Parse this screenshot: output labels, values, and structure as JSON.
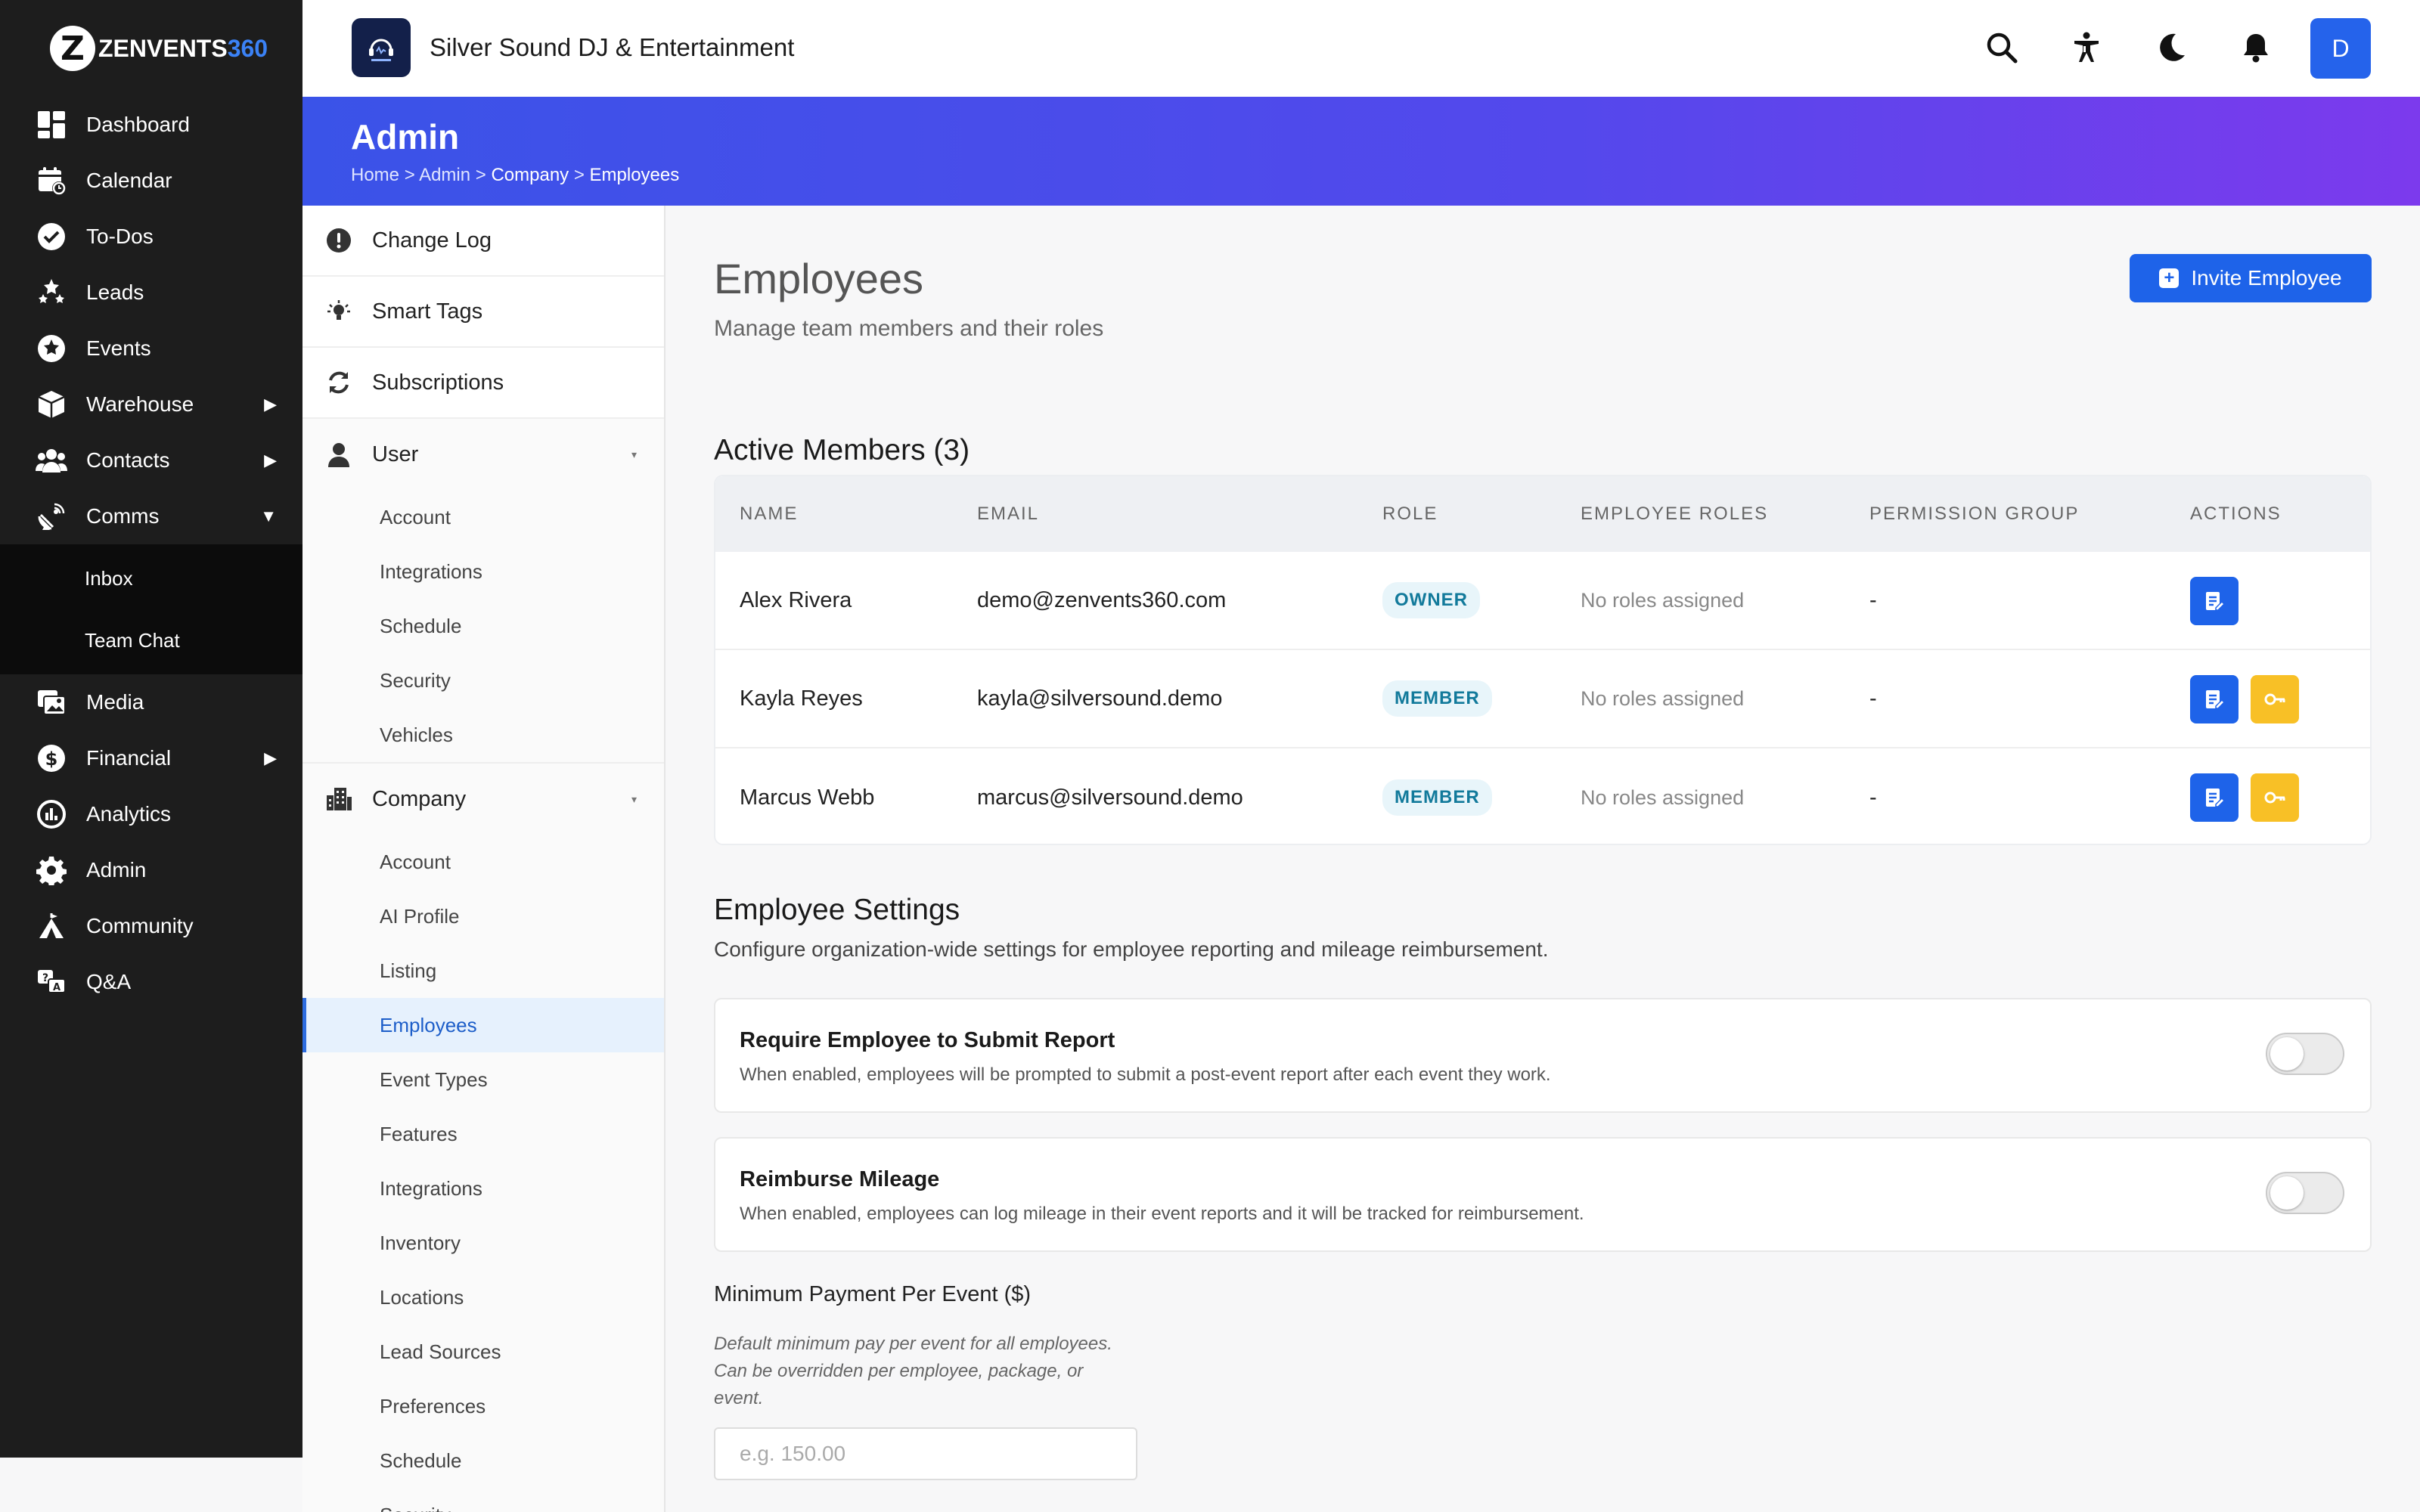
{
  "brand": {
    "logo_letter": "Z",
    "logo_text": "ZENVENTS",
    "logo_suffix": "360"
  },
  "nav": {
    "items": [
      {
        "label": "Dashboard",
        "icon": "dashboard-icon"
      },
      {
        "label": "Calendar",
        "icon": "calendar-icon"
      },
      {
        "label": "To-Dos",
        "icon": "check-circle-icon"
      },
      {
        "label": "Leads",
        "icon": "stars-icon"
      },
      {
        "label": "Events",
        "icon": "star-circle-icon"
      },
      {
        "label": "Warehouse",
        "icon": "box-icon",
        "arrow": "▶"
      },
      {
        "label": "Contacts",
        "icon": "users-icon",
        "arrow": "▶"
      },
      {
        "label": "Comms",
        "icon": "satellite-icon",
        "arrow": "▼"
      }
    ],
    "comms_sub": [
      "Inbox",
      "Team Chat"
    ],
    "items2": [
      {
        "label": "Media",
        "icon": "photos-icon"
      },
      {
        "label": "Financial",
        "icon": "dollar-icon",
        "arrow": "▶"
      },
      {
        "label": "Analytics",
        "icon": "chart-pie-icon"
      },
      {
        "label": "Admin",
        "icon": "gear-icon"
      },
      {
        "label": "Community",
        "icon": "tent-icon"
      },
      {
        "label": "Q&A",
        "icon": "qa-icon"
      }
    ]
  },
  "header": {
    "business_name": "Silver Sound DJ & Entertainment",
    "avatar_initial": "D"
  },
  "banner": {
    "title": "Admin",
    "breadcrumb": [
      "Home",
      "Admin",
      "Company",
      "Employees"
    ],
    "sep": " > "
  },
  "side": {
    "top": [
      "Change Log",
      "Smart Tags",
      "Subscriptions"
    ],
    "user": {
      "label": "User",
      "items": [
        "Account",
        "Integrations",
        "Schedule",
        "Security",
        "Vehicles"
      ]
    },
    "company": {
      "label": "Company",
      "items": [
        "Account",
        "AI Profile",
        "Listing",
        "Employees",
        "Event Types",
        "Features",
        "Integrations",
        "Inventory",
        "Locations",
        "Lead Sources",
        "Preferences",
        "Schedule",
        "Security"
      ]
    },
    "caret": "▾"
  },
  "main": {
    "title": "Employees",
    "subtitle": "Manage team members and their roles",
    "invite_label": "Invite Employee",
    "active_title": "Active Members (3)",
    "columns": [
      "NAME",
      "EMAIL",
      "ROLE",
      "EMPLOYEE ROLES",
      "PERMISSION GROUP",
      "ACTIONS"
    ],
    "rows": [
      {
        "name": "Alex Rivera",
        "email": "demo@zenvents360.com",
        "role": "OWNER",
        "employee_roles": "No roles assigned",
        "permission_group": "-",
        "actions": [
          "edit"
        ]
      },
      {
        "name": "Kayla Reyes",
        "email": "kayla@silversound.demo",
        "role": "MEMBER",
        "employee_roles": "No roles assigned",
        "permission_group": "-",
        "actions": [
          "edit",
          "key"
        ]
      },
      {
        "name": "Marcus Webb",
        "email": "marcus@silversound.demo",
        "role": "MEMBER",
        "employee_roles": "No roles assigned",
        "permission_group": "-",
        "actions": [
          "edit",
          "key"
        ]
      }
    ],
    "settings_title": "Employee Settings",
    "settings_sub": "Configure organization-wide settings for employee reporting and mileage reimbursement.",
    "settings": [
      {
        "title": "Require Employee to Submit Report",
        "desc": "When enabled, employees will be prompted to submit a post-event report after each event they work.",
        "enabled": false
      },
      {
        "title": "Reimburse Mileage",
        "desc": "When enabled, employees can log mileage in their event reports and it will be tracked for reimbursement.",
        "enabled": false
      }
    ],
    "min_pay": {
      "label": "Minimum Payment Per Event ($)",
      "help": "Default minimum pay per event for all employees. Can be overridden per employee, package, or event.",
      "placeholder": "e.g. 150.00",
      "value": ""
    }
  }
}
